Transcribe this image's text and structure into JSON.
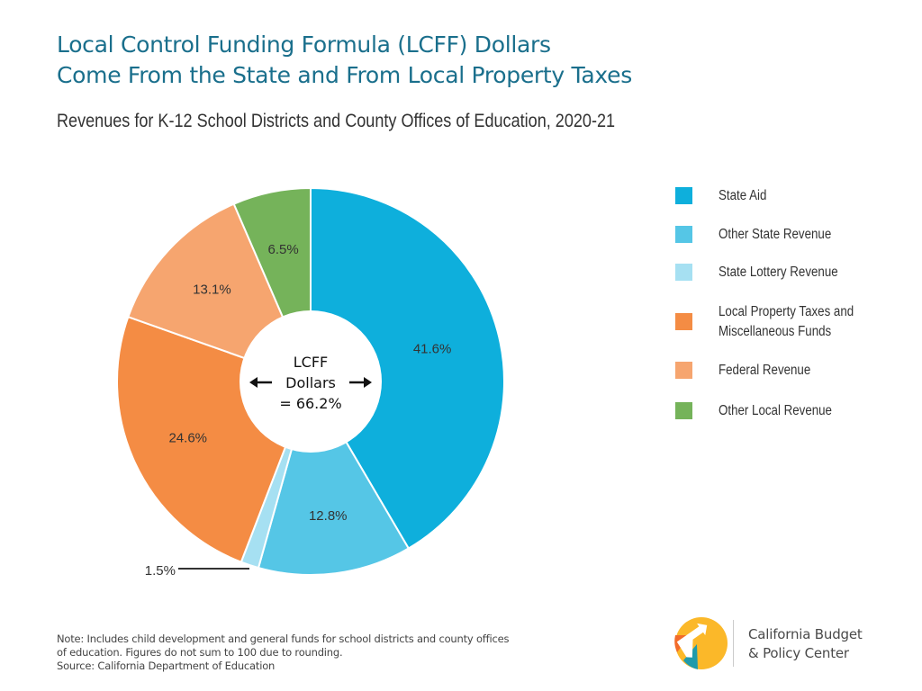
{
  "header": {
    "title_line1": "Local Control Funding Formula (LCFF) Dollars",
    "title_line2": "Come From the State and From Local Property Taxes",
    "subtitle": "Revenues for K-12 School Districts and County Offices of Education, 2020-21"
  },
  "chart_data": {
    "type": "pie",
    "variant": "donut",
    "title": "Local Control Funding Formula (LCFF) Dollars Come From the State and From Local Property Taxes",
    "subtitle": "Revenues for K-12 School Districts and County Offices of Education, 2020-21",
    "start": "12 o'clock, clockwise",
    "unit": "%",
    "slices": [
      {
        "name": "State Aid",
        "value": 41.6,
        "label": "41.6%",
        "color": "#0eafdc"
      },
      {
        "name": "Other State Revenue",
        "value": 12.8,
        "label": "12.8%",
        "color": "#55c6e6"
      },
      {
        "name": "State Lottery Revenue",
        "value": 1.5,
        "label": "1.5%",
        "color": "#a6e0f2",
        "label_outside": true
      },
      {
        "name": "Local Property Taxes and Miscellaneous Funds",
        "value": 24.6,
        "label": "24.6%",
        "color": "#f48c44"
      },
      {
        "name": "Federal Revenue",
        "value": 13.1,
        "label": "13.1%",
        "color": "#f6a56f"
      },
      {
        "name": "Other Local Revenue",
        "value": 6.5,
        "label": "6.5%",
        "color": "#75b35a"
      }
    ],
    "center_annotation": {
      "line1": "LCFF",
      "line2": "Dollars",
      "line3": "= 66.2%",
      "arrows": [
        "left-arrow",
        "right-arrow"
      ]
    },
    "legend_position": "right"
  },
  "legend": {
    "items": [
      {
        "label": "State Aid",
        "color": "#0eafdc"
      },
      {
        "label": "Other State Revenue",
        "color": "#55c6e6"
      },
      {
        "label": "State Lottery Revenue",
        "color": "#a6e0f2"
      },
      {
        "label_line1": "Local Property Taxes and",
        "label_line2": "Miscellaneous Funds",
        "color": "#f48c44"
      },
      {
        "label": "Federal Revenue",
        "color": "#f6a56f"
      },
      {
        "label": "Other Local Revenue",
        "color": "#75b35a"
      }
    ]
  },
  "footer": {
    "note_line1": "Note: Includes child development and general funds for school districts and county offices",
    "note_line2": "of education. Figures do not sum to 100 due to rounding.",
    "source": "Source: California Department of Education"
  },
  "logo": {
    "line1": "California Budget",
    "line2": "& Policy Center",
    "colors": {
      "yellow": "#fbb829",
      "orange": "#f26b2a",
      "teal": "#1f9aab"
    }
  }
}
